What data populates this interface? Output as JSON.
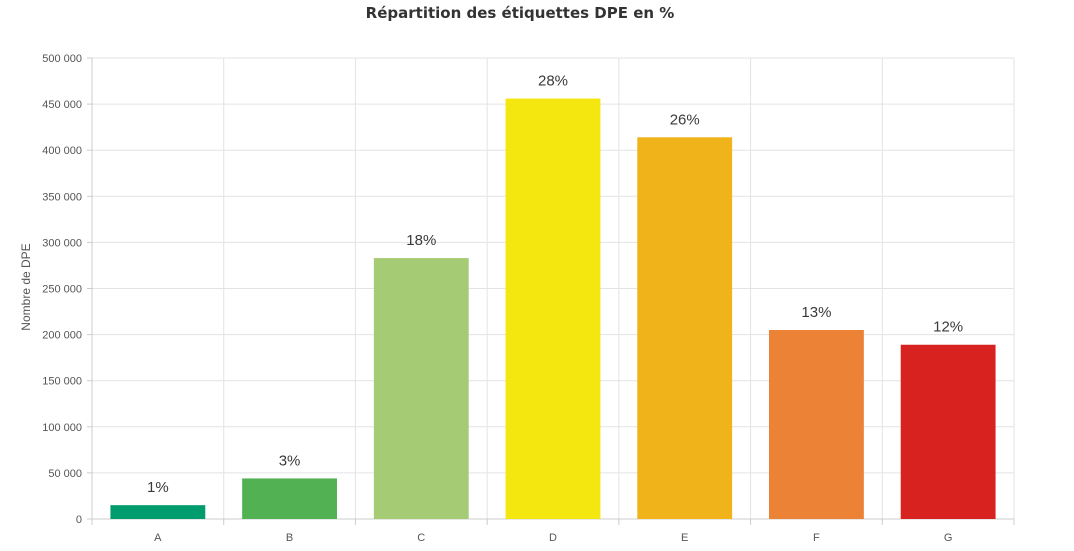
{
  "chart_data": {
    "type": "bar",
    "title": "Répartition des étiquettes DPE en %",
    "xlabel": "",
    "ylabel": "Nombre de DPE",
    "ylim": [
      0,
      500000
    ],
    "yticks": [
      0,
      50000,
      100000,
      150000,
      200000,
      250000,
      300000,
      350000,
      400000,
      450000,
      500000
    ],
    "ytick_labels": [
      "0",
      "50 000",
      "100 000",
      "150 000",
      "200 000",
      "250 000",
      "300 000",
      "350 000",
      "400 000",
      "450 000",
      "500 000"
    ],
    "categories": [
      "A",
      "B",
      "C",
      "D",
      "E",
      "F",
      "G"
    ],
    "values": [
      15000,
      44000,
      283000,
      456000,
      414000,
      205000,
      189000
    ],
    "data_labels": [
      "1%",
      "3%",
      "18%",
      "28%",
      "26%",
      "13%",
      "12%"
    ],
    "colors": [
      "#009C6D",
      "#52B153",
      "#A5CC74",
      "#F4E70F",
      "#F0B41A",
      "#EB8235",
      "#D7221F"
    ],
    "grid": true,
    "legend": "none"
  }
}
